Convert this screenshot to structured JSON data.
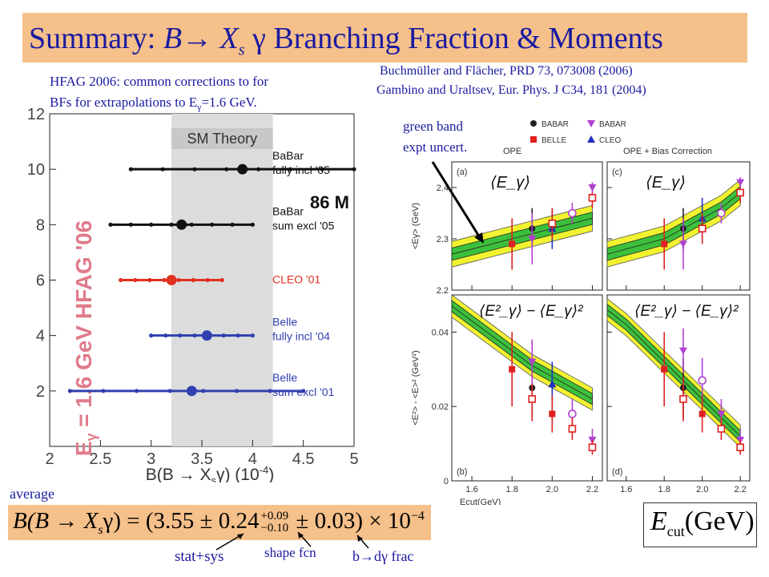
{
  "title": {
    "prefix": "Summary: ",
    "b": "B",
    "arrow": "→",
    "xs": " X",
    "s": "s",
    "gamma": " γ ",
    "rest": "Branching Fraction & Moments"
  },
  "refs": {
    "ref1": "Buchmüller and Flächer, PRD 73, 073008 (2006)",
    "ref2": "Gambino and Uraltsev, Eur. Phys. J C34, 181 (2004)"
  },
  "hfag_note": {
    "line1": "HFAG 2006: common corrections to for",
    "line2": "BFs for extrapolations to E",
    "line2b": "γ",
    "line2c": "=1.6 GeV."
  },
  "green_note": {
    "line1": "green band",
    "line2": "expt uncert."
  },
  "average_label": "average",
  "formula": {
    "lhs": "B(B → X",
    "lhs_s": "s",
    "lhs_end": "γ) = (3.55 ± 0.24",
    "sup": "+0.09",
    "sub": "−0.10",
    "rhs": " ± 0.03) × 10",
    "exp": "−4"
  },
  "arrow_labels": {
    "stat": "stat+sys",
    "shape": "shape fcn",
    "bdg": "b→dγ frac"
  },
  "ecut_label": {
    "e": "E",
    "sub": "cut",
    "unit": "(GeV)"
  },
  "left_chart": {
    "header": "SM Theory",
    "vertical_label": "E",
    "vertical_label_sub": "γ",
    "vertical_label_rest": " = 1.6 GeV  HFAG '06",
    "tag": "86 M",
    "xaxis_label": "B(B → X",
    "xaxis_label_s": "s",
    "xaxis_label_end": "γ) (10",
    "xaxis_exp": "-4",
    "xaxis_close": ")",
    "y_ticks": [
      "2",
      "4",
      "6",
      "8",
      "10",
      "12"
    ],
    "x_ticks": [
      "2",
      "2.5",
      "3",
      "3.5",
      "4",
      "4.5",
      "5"
    ],
    "band": [
      3.2,
      4.2
    ],
    "measurements": [
      {
        "name": "BaBar fully incl '05",
        "line1": "BaBar",
        "line2": "fully incl '05",
        "y": 10,
        "value": 3.9,
        "lo": 2.8,
        "hi": 5.0,
        "color": "#111111"
      },
      {
        "name": "BaBar sum excl '05",
        "line1": "BaBar",
        "line2": "sum excl '05",
        "y": 8,
        "value": 3.3,
        "lo": 2.6,
        "hi": 4.0,
        "color": "#111111"
      },
      {
        "name": "CLEO '01",
        "line1": "CLEO '01",
        "line2": "",
        "y": 6,
        "value": 3.2,
        "lo": 2.7,
        "hi": 3.7,
        "color": "#e03020"
      },
      {
        "name": "Belle fully incl '04",
        "line1": "Belle",
        "line2": "fully incl '04",
        "y": 4,
        "value": 3.55,
        "lo": 3.0,
        "hi": 4.0,
        "color": "#3040b0"
      },
      {
        "name": "Belle sum excl '01",
        "line1": "Belle",
        "line2": "sum excl '01",
        "y": 2,
        "value": 3.4,
        "lo": 2.2,
        "hi": 4.5,
        "color": "#3040b0"
      }
    ]
  },
  "right_chart": {
    "legend": [
      {
        "label": "BABAR",
        "color": "#222222",
        "symbol": "circle"
      },
      {
        "label": "BABAR",
        "color": "#b040d0",
        "symbol": "tri-down"
      },
      {
        "label": "BELLE",
        "color": "#e02020",
        "symbol": "square"
      },
      {
        "label": "CLEO",
        "color": "#2030c0",
        "symbol": "tri-up"
      }
    ],
    "col_titles": [
      "OPE",
      "OPE + Bias Correction"
    ],
    "panel_labels": [
      "(a)",
      "(c)",
      "(b)",
      "(d)"
    ],
    "top_ylabel": "<E",
    "top_ylabel_sub": "γ",
    "top_ylabel_end": "> (GeV)",
    "bottom_ylabel": "<E",
    "bottom_ylabel_rest": "²> - <E",
    "bottom_ylabel_end": ">² (GeV²)",
    "xlabel": "E",
    "xlabel_sub": "cut",
    "xlabel_end": "(GeV)",
    "top_yticks": [
      "2.2",
      "2.3",
      "2.4"
    ],
    "bottom_yticks": [
      "0",
      "0.02",
      "0.04"
    ],
    "xticks": [
      "1.6",
      "1.8",
      "2.0",
      "2.2"
    ],
    "annot_top": "⟨E_γ⟩",
    "annot_bottom": "⟨E²_γ⟩ − ⟨E_γ⟩²"
  },
  "chart_data": [
    {
      "type": "scatter",
      "title": "SM Theory",
      "xlabel": "B(B → Xsγ) (10^-4)",
      "ylabel": "",
      "xlim": [
        2,
        5
      ],
      "ylim": [
        0,
        12
      ],
      "shaded_band": [
        3.2,
        4.2
      ],
      "series": [
        {
          "name": "BaBar fully incl '05",
          "x": [
            3.9
          ],
          "y": [
            10
          ],
          "xerr_lo": [
            2.8
          ],
          "xerr_hi": [
            5.0
          ]
        },
        {
          "name": "BaBar sum excl '05",
          "x": [
            3.3
          ],
          "y": [
            8
          ],
          "xerr_lo": [
            2.6
          ],
          "xerr_hi": [
            4.0
          ]
        },
        {
          "name": "CLEO '01",
          "x": [
            3.2
          ],
          "y": [
            6
          ],
          "xerr_lo": [
            2.7
          ],
          "xerr_hi": [
            3.7
          ]
        },
        {
          "name": "Belle fully incl '04",
          "x": [
            3.55
          ],
          "y": [
            4
          ],
          "xerr_lo": [
            3.0
          ],
          "xerr_hi": [
            4.0
          ]
        },
        {
          "name": "Belle sum excl '01",
          "x": [
            3.4
          ],
          "y": [
            2
          ],
          "xerr_lo": [
            2.2
          ],
          "xerr_hi": [
            4.5
          ]
        }
      ]
    },
    {
      "type": "scatter",
      "panel": "(a) OPE",
      "xlabel": "Ecut(GeV)",
      "ylabel": "<Eγ> (GeV)",
      "xlim": [
        1.5,
        2.25
      ],
      "ylim": [
        2.2,
        2.45
      ],
      "band_center": [
        [
          1.5,
          2.27
        ],
        [
          1.6,
          2.28
        ],
        [
          1.7,
          2.29
        ],
        [
          1.8,
          2.3
        ],
        [
          1.9,
          2.31
        ],
        [
          2.0,
          2.32
        ],
        [
          2.1,
          2.33
        ],
        [
          2.2,
          2.34
        ]
      ],
      "band_halfwidth_green": 0.012,
      "band_halfwidth_yellow": 0.025,
      "points": [
        {
          "x": 1.8,
          "y": 2.29,
          "err": 0.05,
          "color": "#e02020",
          "symbol": "square"
        },
        {
          "x": 1.9,
          "y": 2.32,
          "err": 0.04,
          "color": "#222222",
          "symbol": "circle"
        },
        {
          "x": 1.9,
          "y": 2.3,
          "err": 0.05,
          "color": "#b040d0",
          "symbol": "tri-down"
        },
        {
          "x": 2.0,
          "y": 2.32,
          "err": 0.04,
          "color": "#2030c0",
          "symbol": "tri-up"
        },
        {
          "x": 2.0,
          "y": 2.33,
          "err": 0.03,
          "color": "#e02020",
          "symbol": "open-square"
        },
        {
          "x": 2.1,
          "y": 2.35,
          "err": 0.02,
          "color": "#b040d0",
          "symbol": "open-circle"
        },
        {
          "x": 2.2,
          "y": 2.38,
          "err": 0.02,
          "color": "#e02020",
          "symbol": "open-square"
        },
        {
          "x": 2.2,
          "y": 2.4,
          "err": 0.01,
          "color": "#b040d0",
          "symbol": "tri-down"
        }
      ]
    },
    {
      "type": "scatter",
      "panel": "(c) OPE + Bias Correction",
      "xlabel": "Ecut(GeV)",
      "ylabel": "<Eγ> (GeV)",
      "xlim": [
        1.5,
        2.25
      ],
      "ylim": [
        2.2,
        2.45
      ],
      "band_center": [
        [
          1.5,
          2.27
        ],
        [
          1.6,
          2.28
        ],
        [
          1.7,
          2.29
        ],
        [
          1.8,
          2.3
        ],
        [
          1.9,
          2.32
        ],
        [
          2.0,
          2.34
        ],
        [
          2.1,
          2.36
        ],
        [
          2.2,
          2.39
        ]
      ],
      "band_halfwidth_green": 0.012,
      "band_halfwidth_yellow": 0.025,
      "points": [
        {
          "x": 1.8,
          "y": 2.29,
          "err": 0.05,
          "color": "#e02020",
          "symbol": "square"
        },
        {
          "x": 1.9,
          "y": 2.32,
          "err": 0.04,
          "color": "#222222",
          "symbol": "circle"
        },
        {
          "x": 1.9,
          "y": 2.29,
          "err": 0.05,
          "color": "#b040d0",
          "symbol": "tri-down"
        },
        {
          "x": 2.0,
          "y": 2.34,
          "err": 0.04,
          "color": "#2030c0",
          "symbol": "tri-up"
        },
        {
          "x": 2.0,
          "y": 2.32,
          "err": 0.03,
          "color": "#e02020",
          "symbol": "open-square"
        },
        {
          "x": 2.1,
          "y": 2.35,
          "err": 0.02,
          "color": "#b040d0",
          "symbol": "open-circle"
        },
        {
          "x": 2.2,
          "y": 2.39,
          "err": 0.02,
          "color": "#e02020",
          "symbol": "open-square"
        },
        {
          "x": 2.2,
          "y": 2.41,
          "err": 0.01,
          "color": "#b040d0",
          "symbol": "tri-down"
        }
      ]
    },
    {
      "type": "scatter",
      "panel": "(b) OPE",
      "xlabel": "Ecut(GeV)",
      "ylabel": "<Eγ²> - <Eγ>² (GeV²)",
      "xlim": [
        1.5,
        2.25
      ],
      "ylim": [
        0,
        0.05
      ],
      "band_center": [
        [
          1.5,
          0.047
        ],
        [
          1.6,
          0.043
        ],
        [
          1.7,
          0.039
        ],
        [
          1.8,
          0.035
        ],
        [
          1.9,
          0.031
        ],
        [
          2.0,
          0.028
        ],
        [
          2.1,
          0.025
        ],
        [
          2.2,
          0.022
        ]
      ],
      "band_halfwidth_green": 0.0015,
      "band_halfwidth_yellow": 0.003,
      "points": [
        {
          "x": 1.8,
          "y": 0.03,
          "err": 0.01,
          "color": "#e02020",
          "symbol": "square"
        },
        {
          "x": 1.9,
          "y": 0.025,
          "err": 0.008,
          "color": "#222222",
          "symbol": "circle"
        },
        {
          "x": 1.9,
          "y": 0.022,
          "err": 0.006,
          "color": "#e02020",
          "symbol": "open-square"
        },
        {
          "x": 1.9,
          "y": 0.032,
          "err": 0.006,
          "color": "#b040d0",
          "symbol": "tri-down"
        },
        {
          "x": 2.0,
          "y": 0.026,
          "err": 0.006,
          "color": "#2030c0",
          "symbol": "tri-up"
        },
        {
          "x": 2.0,
          "y": 0.018,
          "err": 0.005,
          "color": "#e02020",
          "symbol": "square"
        },
        {
          "x": 2.1,
          "y": 0.018,
          "err": 0.004,
          "color": "#b040d0",
          "symbol": "open-circle"
        },
        {
          "x": 2.1,
          "y": 0.014,
          "err": 0.003,
          "color": "#e02020",
          "symbol": "open-square"
        },
        {
          "x": 2.2,
          "y": 0.011,
          "err": 0.003,
          "color": "#b040d0",
          "symbol": "tri-down"
        },
        {
          "x": 2.2,
          "y": 0.009,
          "err": 0.002,
          "color": "#e02020",
          "symbol": "open-square"
        }
      ]
    },
    {
      "type": "scatter",
      "panel": "(d) OPE + Bias Correction",
      "xlabel": "Ecut(GeV)",
      "ylabel": "<Eγ²> - <Eγ>² (GeV²)",
      "xlim": [
        1.5,
        2.25
      ],
      "ylim": [
        0,
        0.05
      ],
      "band_center": [
        [
          1.5,
          0.046
        ],
        [
          1.6,
          0.042
        ],
        [
          1.7,
          0.037
        ],
        [
          1.8,
          0.032
        ],
        [
          1.9,
          0.027
        ],
        [
          2.0,
          0.022
        ],
        [
          2.1,
          0.017
        ],
        [
          2.2,
          0.012
        ]
      ],
      "band_halfwidth_green": 0.0015,
      "band_halfwidth_yellow": 0.003,
      "points": [
        {
          "x": 1.8,
          "y": 0.03,
          "err": 0.01,
          "color": "#e02020",
          "symbol": "square"
        },
        {
          "x": 1.9,
          "y": 0.025,
          "err": 0.008,
          "color": "#222222",
          "symbol": "circle"
        },
        {
          "x": 1.9,
          "y": 0.022,
          "err": 0.006,
          "color": "#e02020",
          "symbol": "open-square"
        },
        {
          "x": 1.9,
          "y": 0.035,
          "err": 0.006,
          "color": "#b040d0",
          "symbol": "tri-down"
        },
        {
          "x": 2.0,
          "y": 0.027,
          "err": 0.006,
          "color": "#b040d0",
          "symbol": "open-circle"
        },
        {
          "x": 2.0,
          "y": 0.018,
          "err": 0.005,
          "color": "#e02020",
          "symbol": "square"
        },
        {
          "x": 2.1,
          "y": 0.018,
          "err": 0.004,
          "color": "#b040d0",
          "symbol": "tri-down"
        },
        {
          "x": 2.1,
          "y": 0.014,
          "err": 0.003,
          "color": "#e02020",
          "symbol": "open-square"
        },
        {
          "x": 2.2,
          "y": 0.011,
          "err": 0.003,
          "color": "#b040d0",
          "symbol": "tri-down"
        },
        {
          "x": 2.2,
          "y": 0.009,
          "err": 0.002,
          "color": "#e02020",
          "symbol": "open-square"
        }
      ]
    }
  ]
}
